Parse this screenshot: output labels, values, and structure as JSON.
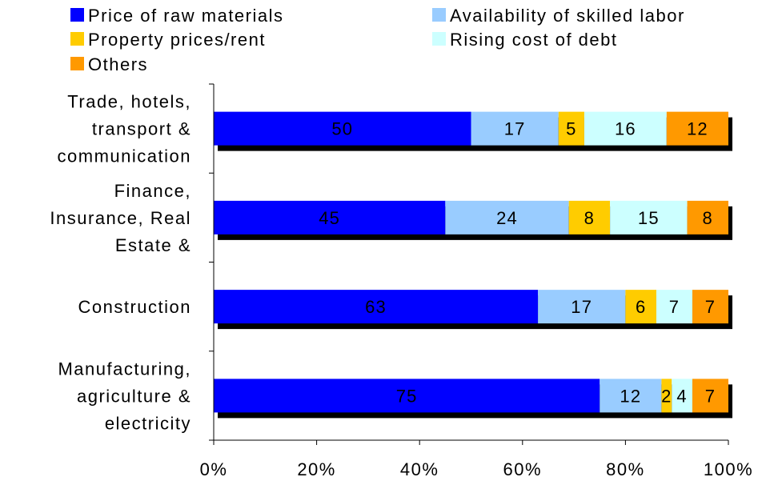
{
  "chart_data": {
    "type": "bar",
    "orientation": "horizontal",
    "stacked": true,
    "normalized_percent": true,
    "title": "",
    "xlabel": "",
    "ylabel": "",
    "xlim": [
      0,
      100
    ],
    "x_ticks": [
      "0%",
      "20%",
      "40%",
      "60%",
      "80%",
      "100%"
    ],
    "grid": false,
    "legend_position": "top",
    "categories": [
      [
        "Trade, hotels,",
        "transport &",
        "communication"
      ],
      [
        "Finance,",
        "Insurance, Real",
        "Estate &"
      ],
      [
        "Construction"
      ],
      [
        "Manufacturing,",
        "agriculture &",
        "electricity"
      ]
    ],
    "series": [
      {
        "name": "Price of raw materials",
        "color": "#0000FF",
        "values": [
          50,
          45,
          63,
          75
        ]
      },
      {
        "name": "Availability of skilled labor",
        "color": "#99CCFF",
        "values": [
          17,
          24,
          17,
          12
        ]
      },
      {
        "name": "Property prices/rent",
        "color": "#FFCC00",
        "values": [
          5,
          8,
          6,
          2
        ]
      },
      {
        "name": "Rising cost of debt",
        "color": "#CCFFFF",
        "values": [
          16,
          15,
          7,
          4
        ]
      },
      {
        "name": "Others",
        "color": "#FF9900",
        "values": [
          12,
          8,
          7,
          7
        ]
      }
    ]
  }
}
